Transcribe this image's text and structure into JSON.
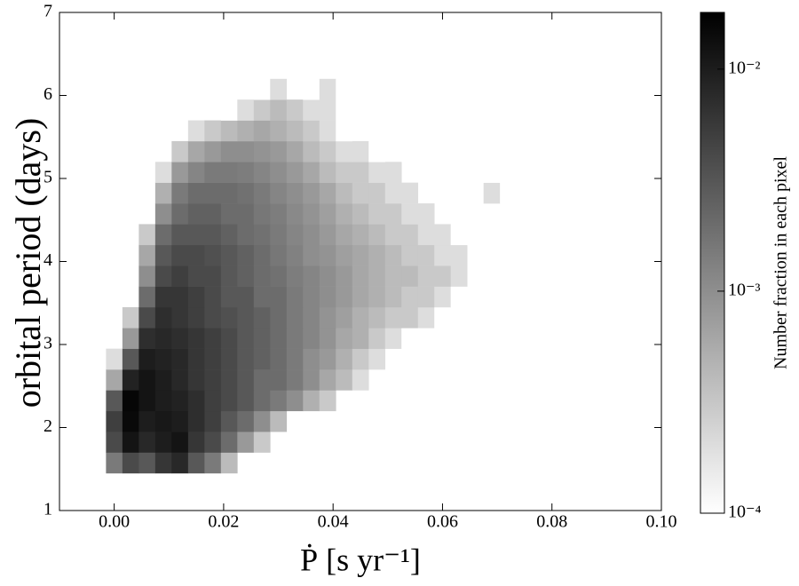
{
  "chart_data": {
    "type": "heatmap2d",
    "xlabel": "Ṗ [s yr⁻¹]",
    "ylabel": "orbital period (days)",
    "colorbar_label": "Number fraction in each pixel",
    "xlim": [
      -0.01,
      0.1
    ],
    "xticks": [
      {
        "value": 0,
        "label": "0.00"
      },
      {
        "value": 0.02,
        "label": "0.02"
      },
      {
        "value": 0.04,
        "label": "0.04"
      },
      {
        "value": 0.06,
        "label": "0.06"
      },
      {
        "value": 0.08,
        "label": "0.08"
      },
      {
        "value": 0.1,
        "label": "0.10"
      }
    ],
    "ylim": [
      1,
      7
    ],
    "yticks": [
      1,
      2,
      3,
      4,
      5,
      6,
      7
    ],
    "clim": [
      0.0001,
      0.018
    ],
    "clog": true,
    "cticks": [
      {
        "value": 0.0001,
        "label": "10⁻⁴"
      },
      {
        "value": 0.001,
        "label": "10⁻³"
      },
      {
        "value": 0.01,
        "label": "10⁻²"
      }
    ],
    "xbins": [
      -0.0015,
      0.0015,
      0.0045,
      0.0075,
      0.0105,
      0.0135,
      0.0165,
      0.0195,
      0.0225,
      0.0255,
      0.0285,
      0.0315,
      0.0345,
      0.0375,
      0.0405,
      0.0435,
      0.0465,
      0.0495,
      0.0525,
      0.0555,
      0.0585,
      0.0615,
      0.0645,
      0.0675,
      0.0705,
      0.0735
    ],
    "ybins": [
      1.45,
      1.7,
      1.95,
      2.2,
      2.45,
      2.7,
      2.95,
      3.2,
      3.45,
      3.7,
      3.95,
      4.2,
      4.45,
      4.7,
      4.95,
      5.2,
      5.45,
      5.7,
      5.95,
      6.2
    ],
    "z": [
      [
        0.0015,
        0.004,
        0.003,
        0.006,
        0.008,
        0.003,
        0.0015,
        0.0004
      ],
      [
        0.004,
        0.012,
        0.008,
        0.01,
        0.012,
        0.006,
        0.004,
        0.002,
        0.0008,
        0.0003
      ],
      [
        0.005,
        0.015,
        0.01,
        0.011,
        0.01,
        0.007,
        0.005,
        0.003,
        0.002,
        0.001,
        0.0004
      ],
      [
        0.003,
        0.016,
        0.012,
        0.01,
        0.009,
        0.007,
        0.005,
        0.004,
        0.003,
        0.002,
        0.0015,
        0.001,
        0.0005,
        0.0003
      ],
      [
        0.0006,
        0.009,
        0.012,
        0.01,
        0.008,
        0.006,
        0.005,
        0.004,
        0.003,
        0.002,
        0.002,
        0.0015,
        0.001,
        0.0006,
        0.0004,
        0.0002
      ],
      [
        0.0002,
        0.003,
        0.01,
        0.009,
        0.008,
        0.006,
        0.005,
        0.004,
        0.003,
        0.0025,
        0.002,
        0.0015,
        0.001,
        0.0008,
        0.0005,
        0.0003,
        0.0002
      ],
      [
        null,
        0.0008,
        0.007,
        0.008,
        0.007,
        0.006,
        0.005,
        0.004,
        0.003,
        0.0025,
        0.002,
        0.0015,
        0.0012,
        0.0009,
        0.0006,
        0.0005,
        0.0003,
        0.0002,
        0.0001
      ],
      [
        null,
        0.0003,
        0.004,
        0.007,
        0.006,
        0.005,
        0.004,
        0.0035,
        0.003,
        0.0025,
        0.002,
        0.0015,
        0.0012,
        0.0009,
        0.0007,
        0.0005,
        0.0004,
        0.0003,
        0.0003,
        0.0002,
        0.0001
      ],
      [
        null,
        null,
        0.002,
        0.006,
        0.006,
        0.005,
        0.004,
        0.003,
        0.003,
        0.002,
        0.002,
        0.0015,
        0.0012,
        0.001,
        0.0008,
        0.0006,
        0.0005,
        0.0004,
        0.0003,
        0.0003,
        0.0002,
        0.0001
      ],
      [
        null,
        null,
        0.001,
        0.004,
        0.005,
        0.004,
        0.004,
        0.003,
        0.0025,
        0.002,
        0.0018,
        0.0014,
        0.0012,
        0.001,
        0.0008,
        0.0006,
        0.0005,
        0.0004,
        0.0004,
        0.0003,
        0.0003,
        0.0002
      ],
      [
        null,
        null,
        0.0006,
        0.003,
        0.004,
        0.004,
        0.0035,
        0.003,
        0.0025,
        0.002,
        0.0016,
        0.0013,
        0.001,
        0.0009,
        0.0007,
        0.0006,
        0.0005,
        0.0004,
        0.0003,
        0.0003,
        0.0002,
        0.0002
      ],
      [
        null,
        null,
        0.0003,
        0.002,
        0.003,
        0.003,
        0.003,
        0.0025,
        0.002,
        0.0018,
        0.0015,
        0.0012,
        0.001,
        0.0008,
        0.0006,
        0.0005,
        0.0004,
        0.0003,
        0.0003,
        0.0002,
        0.0002,
        0.0001
      ],
      [
        null,
        null,
        null,
        0.001,
        0.002,
        0.0025,
        0.0025,
        0.002,
        0.002,
        0.0016,
        0.0014,
        0.0011,
        0.0009,
        0.0007,
        0.0005,
        0.0004,
        0.0003,
        0.0003,
        0.0002,
        0.0002,
        null,
        null,
        null,
        0.0001
      ],
      [
        null,
        null,
        null,
        0.0005,
        0.0015,
        0.002,
        0.002,
        0.002,
        0.0018,
        0.0015,
        0.0012,
        0.001,
        0.0008,
        0.0006,
        0.0004,
        0.0003,
        0.0003,
        0.0002,
        0.0002,
        null,
        null,
        null,
        null,
        0.0002,
        0.0001
      ],
      [
        null,
        null,
        null,
        0.0002,
        0.0008,
        0.0012,
        0.0015,
        0.0015,
        0.0014,
        0.0012,
        0.001,
        0.0008,
        0.0006,
        0.0004,
        0.0003,
        0.0003,
        0.0002,
        0.0002,
        null,
        null,
        null,
        null,
        0.0001,
        0.0001
      ],
      [
        null,
        null,
        null,
        null,
        0.0003,
        0.0006,
        0.0008,
        0.001,
        0.001,
        0.0009,
        0.0008,
        0.0006,
        0.0004,
        0.0003,
        0.0002,
        0.0002,
        0.0001,
        null,
        0.0001
      ],
      [
        null,
        null,
        null,
        null,
        null,
        0.0002,
        0.0003,
        0.0004,
        0.0005,
        0.0006,
        0.0005,
        0.0004,
        0.0003,
        0.0002,
        0.0001,
        null,
        null,
        null,
        null,
        null,
        0.0001
      ],
      [
        null,
        null,
        null,
        null,
        null,
        null,
        null,
        0.0001,
        0.0002,
        0.0003,
        0.0004,
        0.0003,
        0.0002,
        0.0002,
        0.0001
      ],
      [
        null,
        null,
        null,
        null,
        null,
        null,
        null,
        null,
        null,
        0.0001,
        0.0002,
        null,
        0.0001,
        0.0002,
        0.0001
      ]
    ]
  }
}
